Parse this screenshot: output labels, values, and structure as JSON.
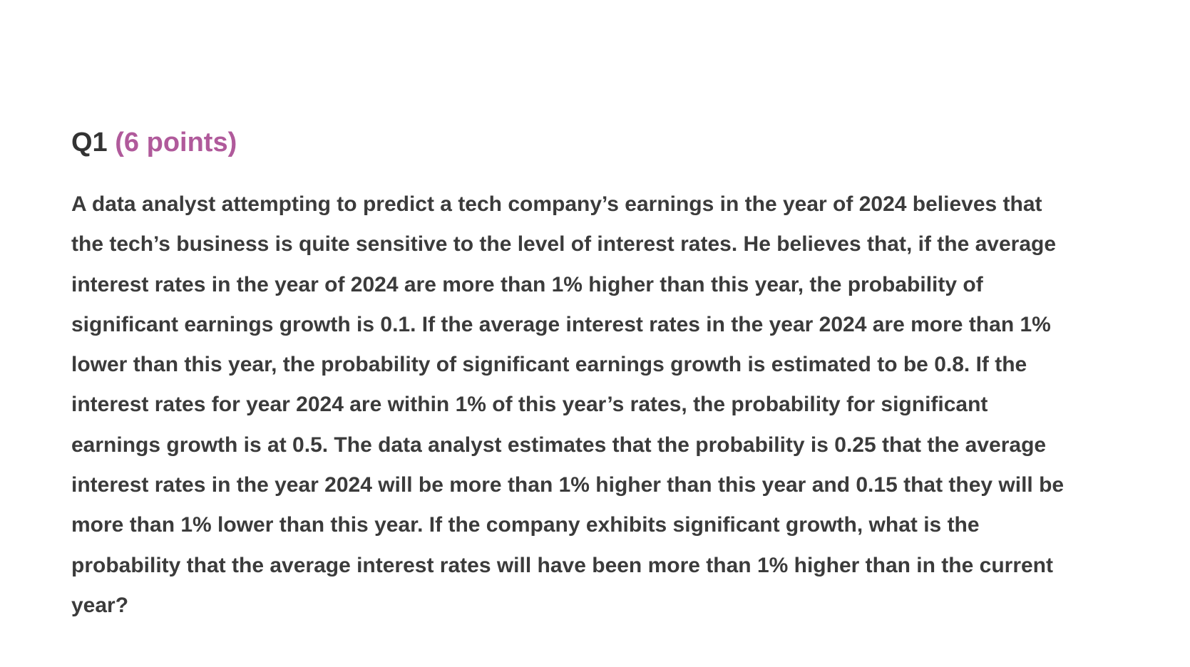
{
  "question": {
    "number": "Q1",
    "points": "(6 points)",
    "body": "A data analyst attempting to predict a tech company’s earnings in the year of 2024 believes that the tech’s business is quite sensitive to the level of interest rates. He believes that, if the average interest rates in the year of 2024 are more than 1% higher than this year, the probability of significant earnings growth is 0.1. If the average interest rates in the year 2024 are more than 1% lower than this year, the probability of significant earnings growth is estimated to be 0.8. If the interest rates for year 2024 are within 1% of this year’s rates, the probability for significant earnings growth is at 0.5. The data analyst estimates that the probability is 0.25 that the average interest rates in the year 2024 will be more than 1% higher than this year and 0.15 that they will be more than 1% lower than this year. If the company exhibits significant growth, what is the probability that the average interest rates will have been more than 1% higher than in the current year?"
  },
  "colors": {
    "heading": "#333333",
    "points": "#b05a9b",
    "body": "#3b3b3b",
    "background": "#ffffff"
  }
}
